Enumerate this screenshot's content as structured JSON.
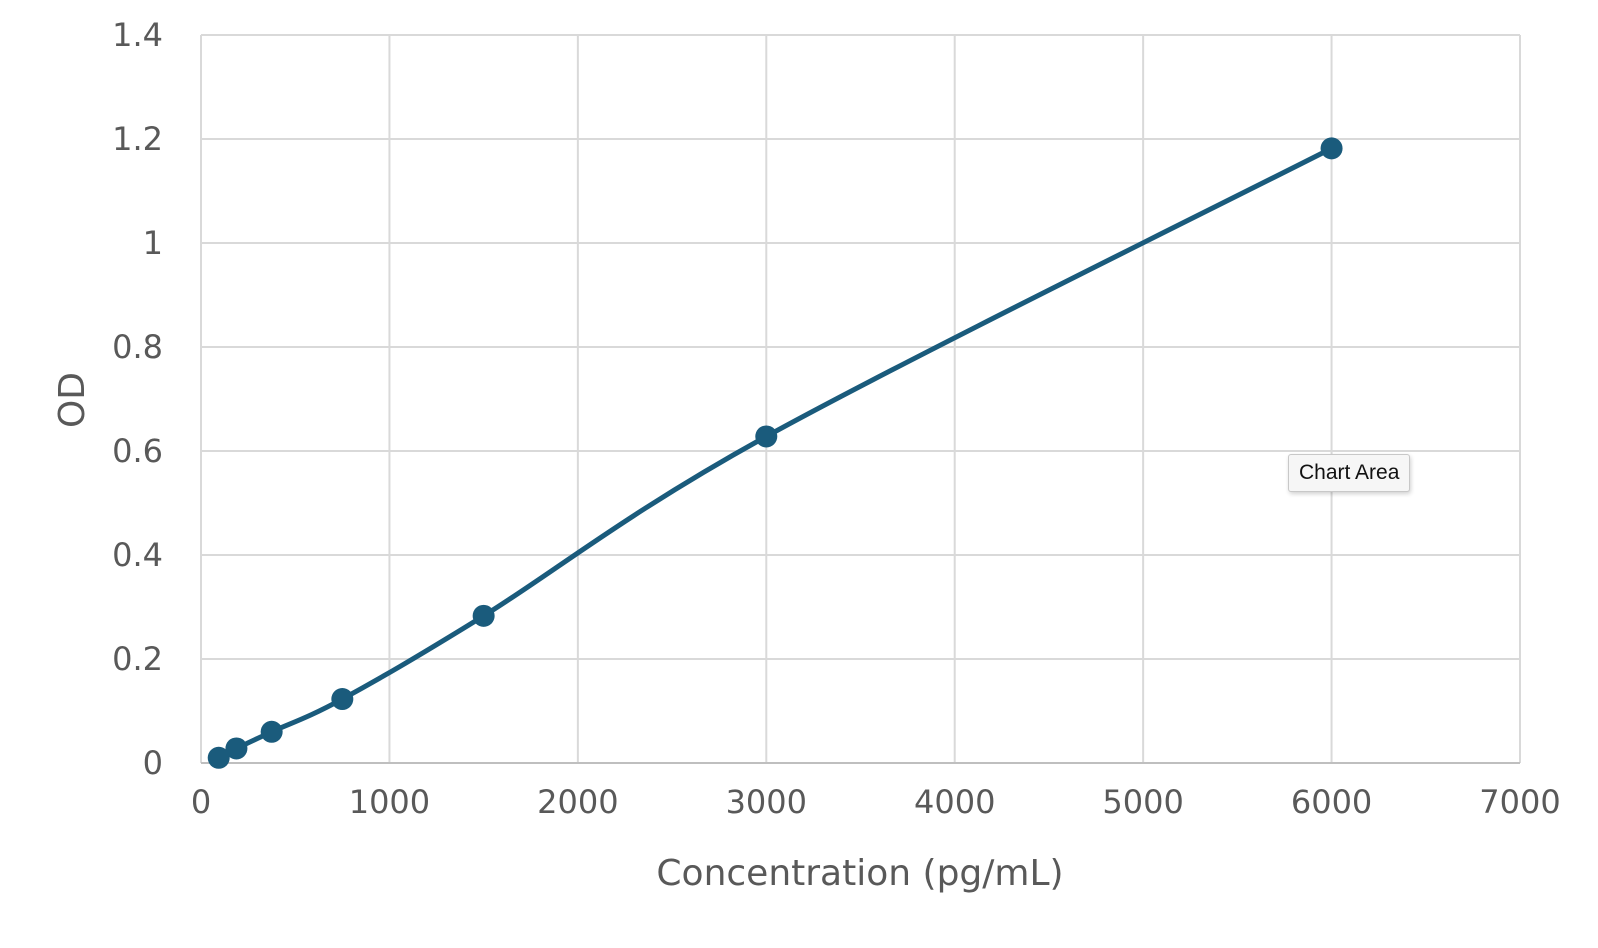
{
  "chart_data": {
    "type": "scatter",
    "xlabel": "Concentration (pg/mL)",
    "ylabel": "OD",
    "xlim": [
      0,
      7000
    ],
    "ylim": [
      0,
      1.4
    ],
    "x_ticks": [
      "0",
      "1000",
      "2000",
      "3000",
      "4000",
      "5000",
      "6000",
      "7000"
    ],
    "y_ticks": [
      "0",
      "0.2",
      "0.4",
      "0.6",
      "0.8",
      "1",
      "1.2",
      "1.4"
    ],
    "grid": true,
    "smoothed_line": true,
    "series": [
      {
        "x": [
          94,
          188,
          375,
          750,
          1500,
          3000,
          6000
        ],
        "y": [
          0.01,
          0.028,
          0.06,
          0.123,
          0.283,
          0.628,
          1.182
        ],
        "color": "#1a5b7c"
      }
    ]
  },
  "tooltip": {
    "text": "Chart Area"
  }
}
